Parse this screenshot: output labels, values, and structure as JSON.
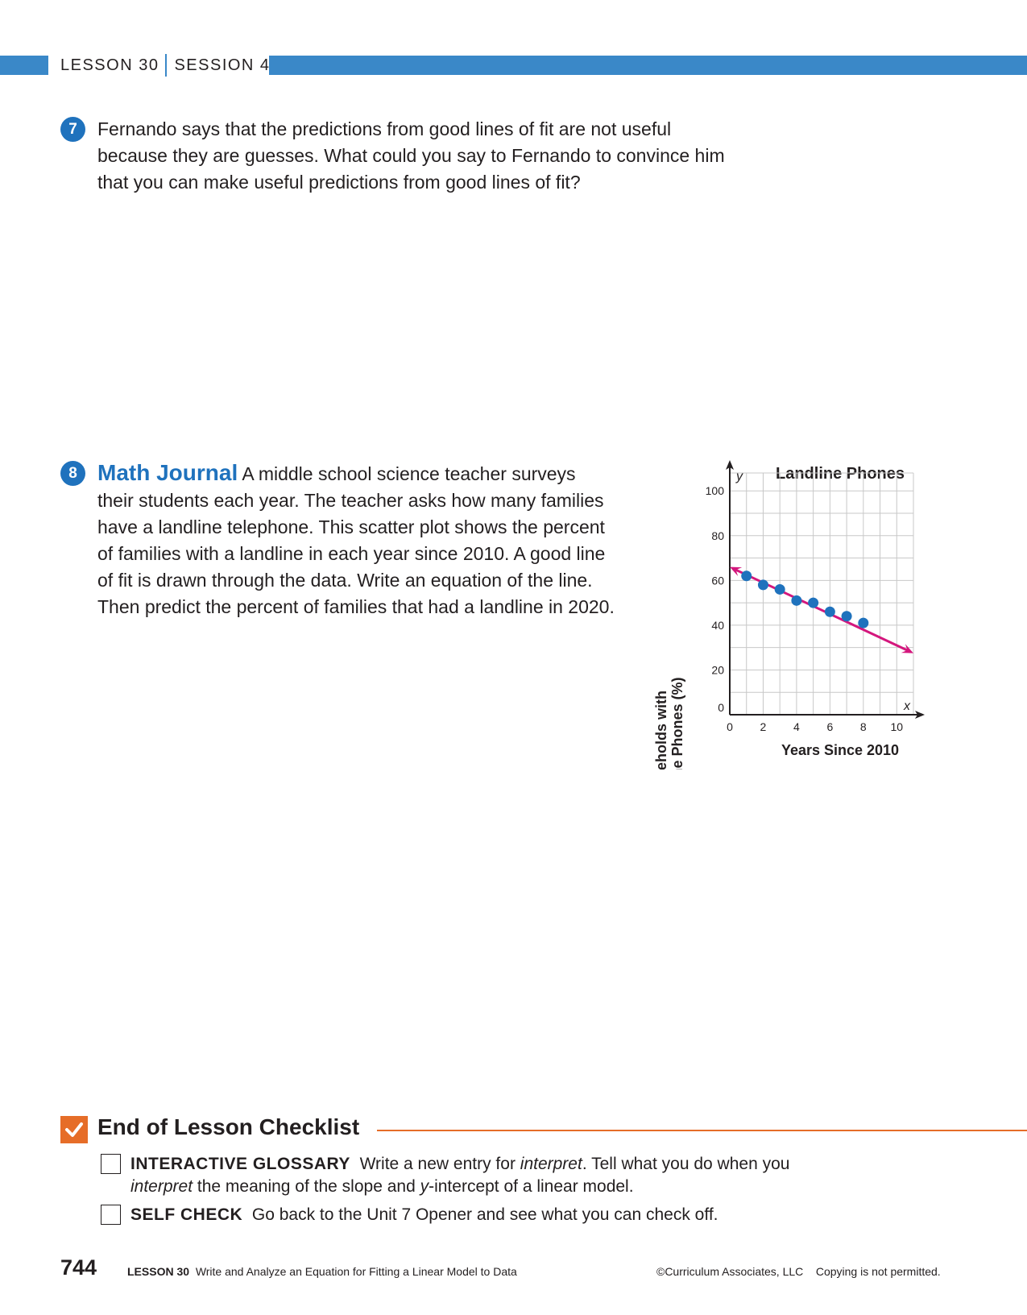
{
  "header": {
    "lesson": "LESSON 30",
    "session": "SESSION 4"
  },
  "q7": {
    "number": "7",
    "lines": [
      "Fernando says that the predictions from good lines of fit are not useful",
      "because they are guesses. What could you say to Fernando to convince him",
      "that you can make useful predictions from good lines of fit?"
    ]
  },
  "q8": {
    "number": "8",
    "title": "Math Journal",
    "first_line": "A middle school science teacher surveys",
    "lines": [
      "their students each year. The teacher asks how many families",
      "have a landline telephone. This scatter plot shows the percent",
      "of families with a landline in each year since 2010. A good line",
      "of fit is drawn through the data. Write an equation of the line.",
      "Then predict the percent of families that had a landline in 2020."
    ]
  },
  "chart_data": {
    "type": "scatter",
    "title": "Landline Phones",
    "xlabel": "Years Since 2010",
    "ylabel_lines": [
      "Households with",
      "Landline Phones (%)"
    ],
    "x_axis_var": "x",
    "y_axis_var": "y",
    "xlim": [
      0,
      11
    ],
    "ylim": [
      0,
      108
    ],
    "x_ticks": [
      "0",
      "2",
      "4",
      "6",
      "8",
      "10"
    ],
    "y_ticks": [
      "0",
      "20",
      "40",
      "60",
      "80",
      "100"
    ],
    "grid": true,
    "points": [
      {
        "x": 1,
        "y": 62
      },
      {
        "x": 2,
        "y": 58
      },
      {
        "x": 3,
        "y": 56
      },
      {
        "x": 4,
        "y": 51
      },
      {
        "x": 5,
        "y": 50
      },
      {
        "x": 6,
        "y": 46
      },
      {
        "x": 7,
        "y": 44
      },
      {
        "x": 8,
        "y": 41
      }
    ],
    "fit_line": {
      "slope": -3.5,
      "intercept": 66,
      "x_start": 0,
      "x_end": 11
    },
    "colors": {
      "points": "#1f72bd",
      "line": "#d4177d",
      "grid": "#c8c8c8"
    }
  },
  "checklist": {
    "title": "End of Lesson Checklist",
    "items": [
      {
        "head": "INTERACTIVE GLOSSARY",
        "line1_pre": "Write a new entry for ",
        "line1_em": "interpret",
        "line1_post": ". Tell what you do when you",
        "line2_em": "interpret",
        "line2_mid": " the meaning of the slope and ",
        "line2_em2": "y",
        "line2_post": "-intercept of a linear model."
      },
      {
        "head": "SELF CHECK",
        "text": "Go back to the Unit 7 Opener and see what you can check off."
      }
    ]
  },
  "footer": {
    "page_number": "744",
    "lesson_label": "LESSON 30",
    "lesson_title": "Write and Analyze an Equation for Fitting a Linear Model to Data",
    "copyright": "©Curriculum Associates, LLC",
    "copy_note": "Copying is not permitted."
  },
  "colors": {
    "header_blue": "#3a88c8",
    "question_blue": "#1f72bd",
    "checklist_orange": "#e66d28"
  }
}
